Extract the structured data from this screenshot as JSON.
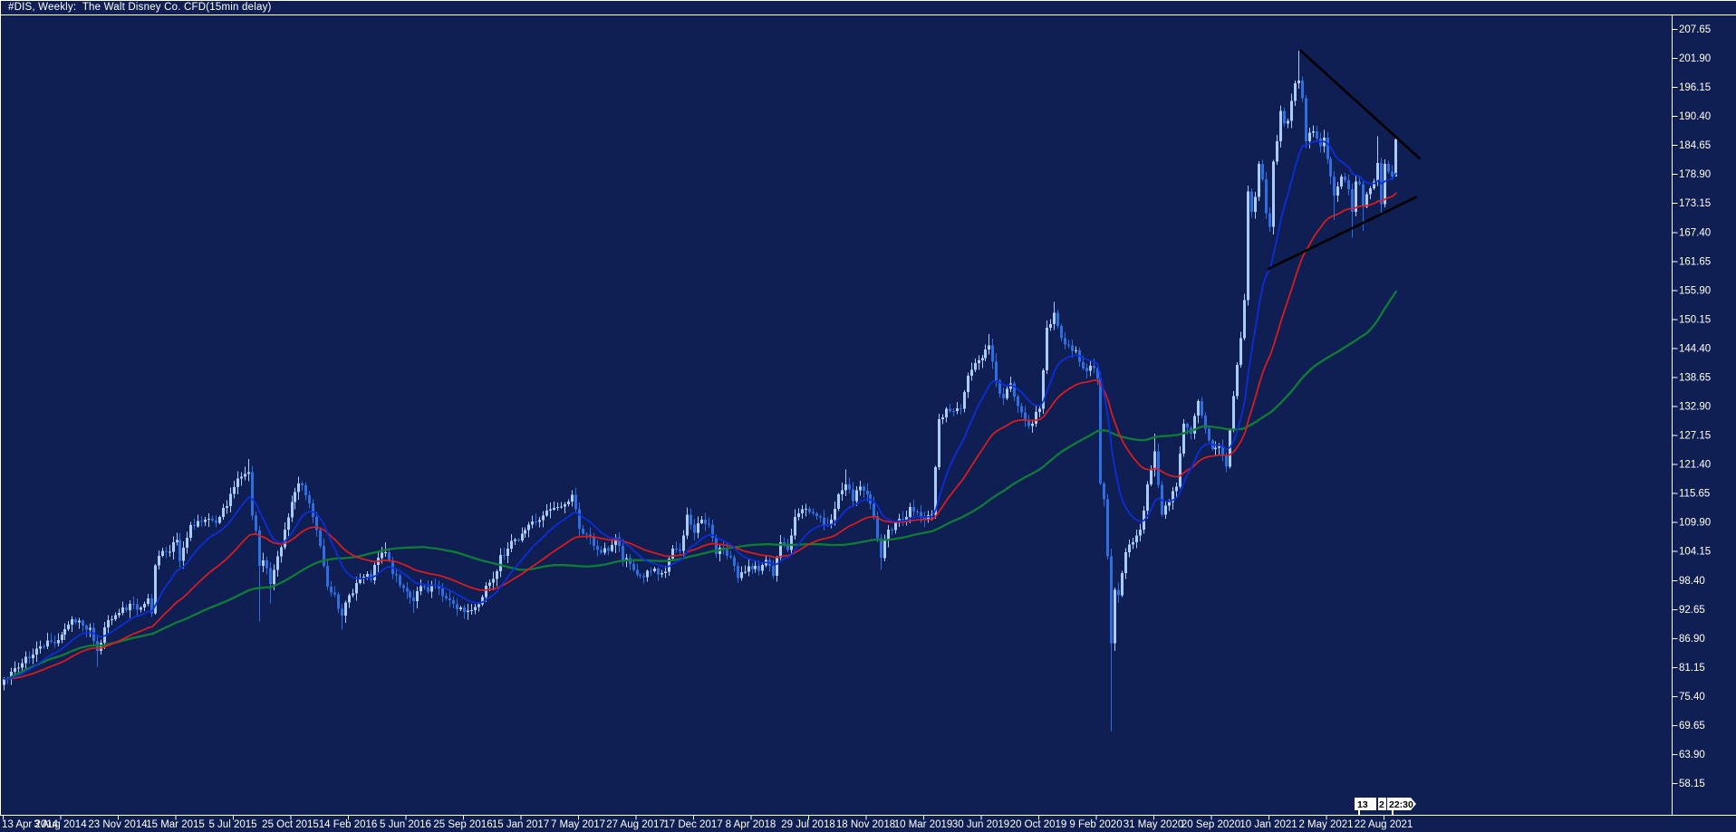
{
  "window": {
    "title": "#DIS, Weekly:  The Walt Disney Co. CFD(15min delay)"
  },
  "colors": {
    "background": "#101f53",
    "frame": "#ffffff",
    "text": "#ffffff",
    "bull": "#a9cdf8",
    "bear": "#2e6ede",
    "ma_fast": "#0b2ee0",
    "ma_mid": "#e11b1b",
    "ma_slow": "#0f7d36",
    "trendline": "#000000",
    "tag_bg": "#ffffff",
    "tag_text": "#000000"
  },
  "chart_data": {
    "type": "candlestick",
    "symbol": "#DIS",
    "timeframe": "Weekly",
    "company": "The Walt Disney Co.",
    "feed": "CFD(15min delay)",
    "grid": false,
    "legend": false,
    "price_axis": {
      "side": "right",
      "min": 58.15,
      "max": 207.65,
      "tick_step": 5.75,
      "tick_labels": [
        "207.65",
        "201.90",
        "196.15",
        "190.40",
        "184.65",
        "178.90",
        "173.15",
        "167.40",
        "161.65",
        "155.90",
        "150.15",
        "144.40",
        "138.65",
        "132.90",
        "127.15",
        "121.40",
        "115.65",
        "109.90",
        "104.15",
        "98.40",
        "92.65",
        "86.90",
        "81.15",
        "75.40",
        "69.65",
        "63.90",
        "58.15"
      ]
    },
    "time_axis": {
      "side": "bottom",
      "weeks_per_tick": 16,
      "tick_labels": [
        "13 Apr 2014",
        "3 Aug 2014",
        "23 Nov 2014",
        "15 Mar 2015",
        "5 Jul 2015",
        "25 Oct 2015",
        "14 Feb 2016",
        "5 Jun 2016",
        "25 Sep 2016",
        "15 Jan 2017",
        "7 May 2017",
        "27 Aug 2017",
        "17 Dec 2017",
        "8 Apr 2018",
        "29 Jul 2018",
        "18 Nov 2018",
        "10 Mar 2019",
        "30 Jun 2019",
        "20 Oct 2019",
        "9 Feb 2020",
        "31 May 2020",
        "20 Sep 2020",
        "10 Jan 2021",
        "2 May 2021",
        "22 Aug 2021"
      ]
    },
    "total_weeks": 388,
    "close_jitter": 1.7,
    "wick_jitter": 1.3,
    "candles_weekly_close_keypoints": [
      [
        0,
        78.8
      ],
      [
        2,
        80.2
      ],
      [
        4,
        81.0
      ],
      [
        6,
        83.2
      ],
      [
        8,
        83.6
      ],
      [
        10,
        85.3
      ],
      [
        12,
        86.4
      ],
      [
        14,
        85.9
      ],
      [
        16,
        87.6
      ],
      [
        18,
        89.6
      ],
      [
        20,
        90.0
      ],
      [
        22,
        89.4
      ],
      [
        24,
        88.9
      ],
      [
        26,
        84.4,
        81.2
      ],
      [
        27,
        86.0
      ],
      [
        28,
        89.0
      ],
      [
        30,
        90.6
      ],
      [
        32,
        91.9
      ],
      [
        34,
        92.4
      ],
      [
        36,
        93.6
      ],
      [
        38,
        93.0
      ],
      [
        40,
        94.8
      ],
      [
        41,
        91.8
      ],
      [
        42,
        101.3
      ],
      [
        44,
        104.2
      ],
      [
        46,
        104.0
      ],
      [
        48,
        106.3
      ],
      [
        49,
        102.2
      ],
      [
        50,
        104.8
      ],
      [
        52,
        109.3
      ],
      [
        54,
        110.1
      ],
      [
        56,
        110.4
      ],
      [
        58,
        110.2
      ],
      [
        60,
        110.9
      ],
      [
        62,
        113.1
      ],
      [
        64,
        116.8
      ],
      [
        66,
        118.9
      ],
      [
        68,
        119.8,
        null,
        122.4
      ],
      [
        69,
        111.2
      ],
      [
        70,
        108.2
      ],
      [
        71,
        101.2,
        90.2
      ],
      [
        72,
        102.3
      ],
      [
        74,
        97.6,
        93.8
      ],
      [
        76,
        103.1
      ],
      [
        78,
        108.4
      ],
      [
        80,
        113.9
      ],
      [
        82,
        117.6,
        null,
        118.9
      ],
      [
        84,
        115.2
      ],
      [
        86,
        110.9
      ],
      [
        88,
        105.2
      ],
      [
        90,
        97.1
      ],
      [
        92,
        95.6
      ],
      [
        94,
        91.4,
        88.6
      ],
      [
        96,
        95.4
      ],
      [
        98,
        97.8
      ],
      [
        100,
        99.1
      ],
      [
        102,
        98.4
      ],
      [
        104,
        102.8
      ],
      [
        106,
        103.9,
        null,
        105.9
      ],
      [
        108,
        99.6
      ],
      [
        110,
        97.4
      ],
      [
        112,
        96.1
      ],
      [
        114,
        94.2,
        91.9
      ],
      [
        116,
        97.2
      ],
      [
        118,
        96.1
      ],
      [
        120,
        97.4
      ],
      [
        122,
        95.2
      ],
      [
        124,
        94.4
      ],
      [
        126,
        92.6
      ],
      [
        128,
        92.1
      ],
      [
        130,
        92.4
      ],
      [
        132,
        93.6
      ],
      [
        134,
        97.3
      ],
      [
        136,
        98.6
      ],
      [
        138,
        103.4
      ],
      [
        140,
        104.6
      ],
      [
        142,
        106.4
      ],
      [
        144,
        107.6
      ],
      [
        146,
        109.4
      ],
      [
        148,
        109.9
      ],
      [
        150,
        111.2
      ],
      [
        152,
        112.4
      ],
      [
        154,
        112.9
      ],
      [
        156,
        113.4
      ],
      [
        158,
        115.3,
        null,
        116.2
      ],
      [
        160,
        108.6
      ],
      [
        162,
        107.4
      ],
      [
        164,
        105.2
      ],
      [
        166,
        103.8
      ],
      [
        168,
        104.2
      ],
      [
        170,
        106.9
      ],
      [
        172,
        102.3
      ],
      [
        174,
        101.6
      ],
      [
        176,
        99.4
      ],
      [
        178,
        99.0
      ],
      [
        180,
        100.2
      ],
      [
        182,
        99.5
      ],
      [
        184,
        100.1
      ],
      [
        186,
        104.6
      ],
      [
        188,
        104.2
      ],
      [
        190,
        111.4
      ],
      [
        192,
        107.8
      ],
      [
        194,
        110.4
      ],
      [
        196,
        109.4
      ],
      [
        198,
        103.6
      ],
      [
        200,
        104.4
      ],
      [
        202,
        102.9
      ],
      [
        204,
        98.8
      ],
      [
        206,
        100.1
      ],
      [
        208,
        100.6
      ],
      [
        210,
        100.2
      ],
      [
        212,
        102.4
      ],
      [
        214,
        99.3
      ],
      [
        216,
        105.9
      ],
      [
        218,
        104.4
      ],
      [
        220,
        110.9
      ],
      [
        222,
        112.4
      ],
      [
        224,
        111.9
      ],
      [
        226,
        111.1
      ],
      [
        228,
        109.3
      ],
      [
        230,
        110.4
      ],
      [
        232,
        115.4
      ],
      [
        234,
        117.4,
        null,
        120.3
      ],
      [
        236,
        114.1
      ],
      [
        238,
        116.9
      ],
      [
        240,
        115.4
      ],
      [
        242,
        111.1
      ],
      [
        244,
        102.8,
        100.4
      ],
      [
        246,
        108.4
      ],
      [
        248,
        109.9
      ],
      [
        250,
        110.4
      ],
      [
        252,
        112.9
      ],
      [
        254,
        111.9
      ],
      [
        256,
        110.4
      ],
      [
        258,
        111.4
      ],
      [
        260,
        130.3
      ],
      [
        262,
        132.4
      ],
      [
        264,
        131.9
      ],
      [
        266,
        132.4
      ],
      [
        268,
        138.9
      ],
      [
        270,
        141.4
      ],
      [
        272,
        142.4
      ],
      [
        274,
        144.9,
        null,
        147.2
      ],
      [
        276,
        137.9
      ],
      [
        278,
        134.4
      ],
      [
        280,
        137.4
      ],
      [
        282,
        132.9
      ],
      [
        284,
        129.9
      ],
      [
        286,
        129.4
      ],
      [
        288,
        132.4
      ],
      [
        290,
        148.4
      ],
      [
        292,
        151.4,
        null,
        153.5
      ],
      [
        294,
        146.4
      ],
      [
        296,
        144.9
      ],
      [
        298,
        143.9
      ],
      [
        300,
        140.4
      ],
      [
        302,
        140.9
      ],
      [
        304,
        138.4,
        null,
        141.2
      ],
      [
        305,
        117.6
      ],
      [
        306,
        114.4
      ],
      [
        307,
        103.1
      ],
      [
        308,
        85.9,
        68.5
      ],
      [
        309,
        96.5
      ],
      [
        310,
        95.4
      ],
      [
        312,
        103.9
      ],
      [
        314,
        105.9
      ],
      [
        316,
        108.4
      ],
      [
        318,
        117.4
      ],
      [
        320,
        123.9,
        null,
        127.4
      ],
      [
        322,
        111.4
      ],
      [
        324,
        113.9
      ],
      [
        326,
        116.9
      ],
      [
        328,
        129.4
      ],
      [
        330,
        127.4
      ],
      [
        332,
        133.9
      ],
      [
        334,
        128.4
      ],
      [
        336,
        124.4
      ],
      [
        338,
        124.9
      ],
      [
        340,
        120.9
      ],
      [
        342,
        134.9
      ],
      [
        344,
        146.4
      ],
      [
        345,
        153.9
      ],
      [
        346,
        175.4,
        null,
        176.6
      ],
      [
        347,
        171.4
      ],
      [
        348,
        174.4
      ],
      [
        349,
        180.9
      ],
      [
        350,
        177.9
      ],
      [
        351,
        171.1
      ],
      [
        352,
        168.4
      ],
      [
        353,
        181.4
      ],
      [
        354,
        185.4
      ],
      [
        355,
        191.4
      ],
      [
        356,
        188.9
      ],
      [
        357,
        189.4
      ],
      [
        358,
        193.4
      ],
      [
        359,
        196.9
      ],
      [
        360,
        197.4,
        null,
        203.3
      ],
      [
        361,
        193.9
      ],
      [
        362,
        185.4
      ],
      [
        363,
        187.1
      ],
      [
        364,
        187.4
      ],
      [
        365,
        185.9
      ],
      [
        366,
        184.4
      ],
      [
        367,
        186.1
      ],
      [
        368,
        181.9
      ],
      [
        369,
        178.4
      ],
      [
        370,
        174.6,
        169.8
      ],
      [
        371,
        176.4
      ],
      [
        372,
        178.4
      ],
      [
        373,
        177.7
      ],
      [
        374,
        175.9
      ],
      [
        375,
        171.4,
        166.3
      ],
      [
        376,
        177.4
      ],
      [
        377,
        176.9
      ],
      [
        378,
        172.4,
        167.6
      ],
      [
        379,
        174.9
      ],
      [
        380,
        176.1
      ],
      [
        381,
        177.4
      ],
      [
        382,
        181.1,
        null,
        186.4
      ],
      [
        383,
        172.9,
        170.9
      ],
      [
        384,
        180.9
      ],
      [
        385,
        179.4
      ],
      [
        386,
        178.4
      ],
      [
        387,
        185.8,
        179.6
      ]
    ],
    "moving_averages": [
      {
        "name": "fast",
        "method": "ema",
        "period": 13,
        "color_ref": "ma_fast"
      },
      {
        "name": "mid",
        "method": "ema",
        "period": 35,
        "color_ref": "ma_mid"
      },
      {
        "name": "slow",
        "method": "sma",
        "period": 75,
        "color_ref": "ma_slow"
      }
    ],
    "trendlines": [
      {
        "name": "upper-descending",
        "week_start": 360.5,
        "price_start": 203.3,
        "week_end": 393.5,
        "price_end": 182.0
      },
      {
        "name": "lower-ascending",
        "week_start": 351.5,
        "price_start": 160.1,
        "week_end": 392.5,
        "price_end": 174.3
      }
    ],
    "time_tags": [
      {
        "label": "13"
      },
      {
        "label": "2"
      },
      {
        "label": "22:30",
        "shape": "pennant"
      }
    ]
  }
}
